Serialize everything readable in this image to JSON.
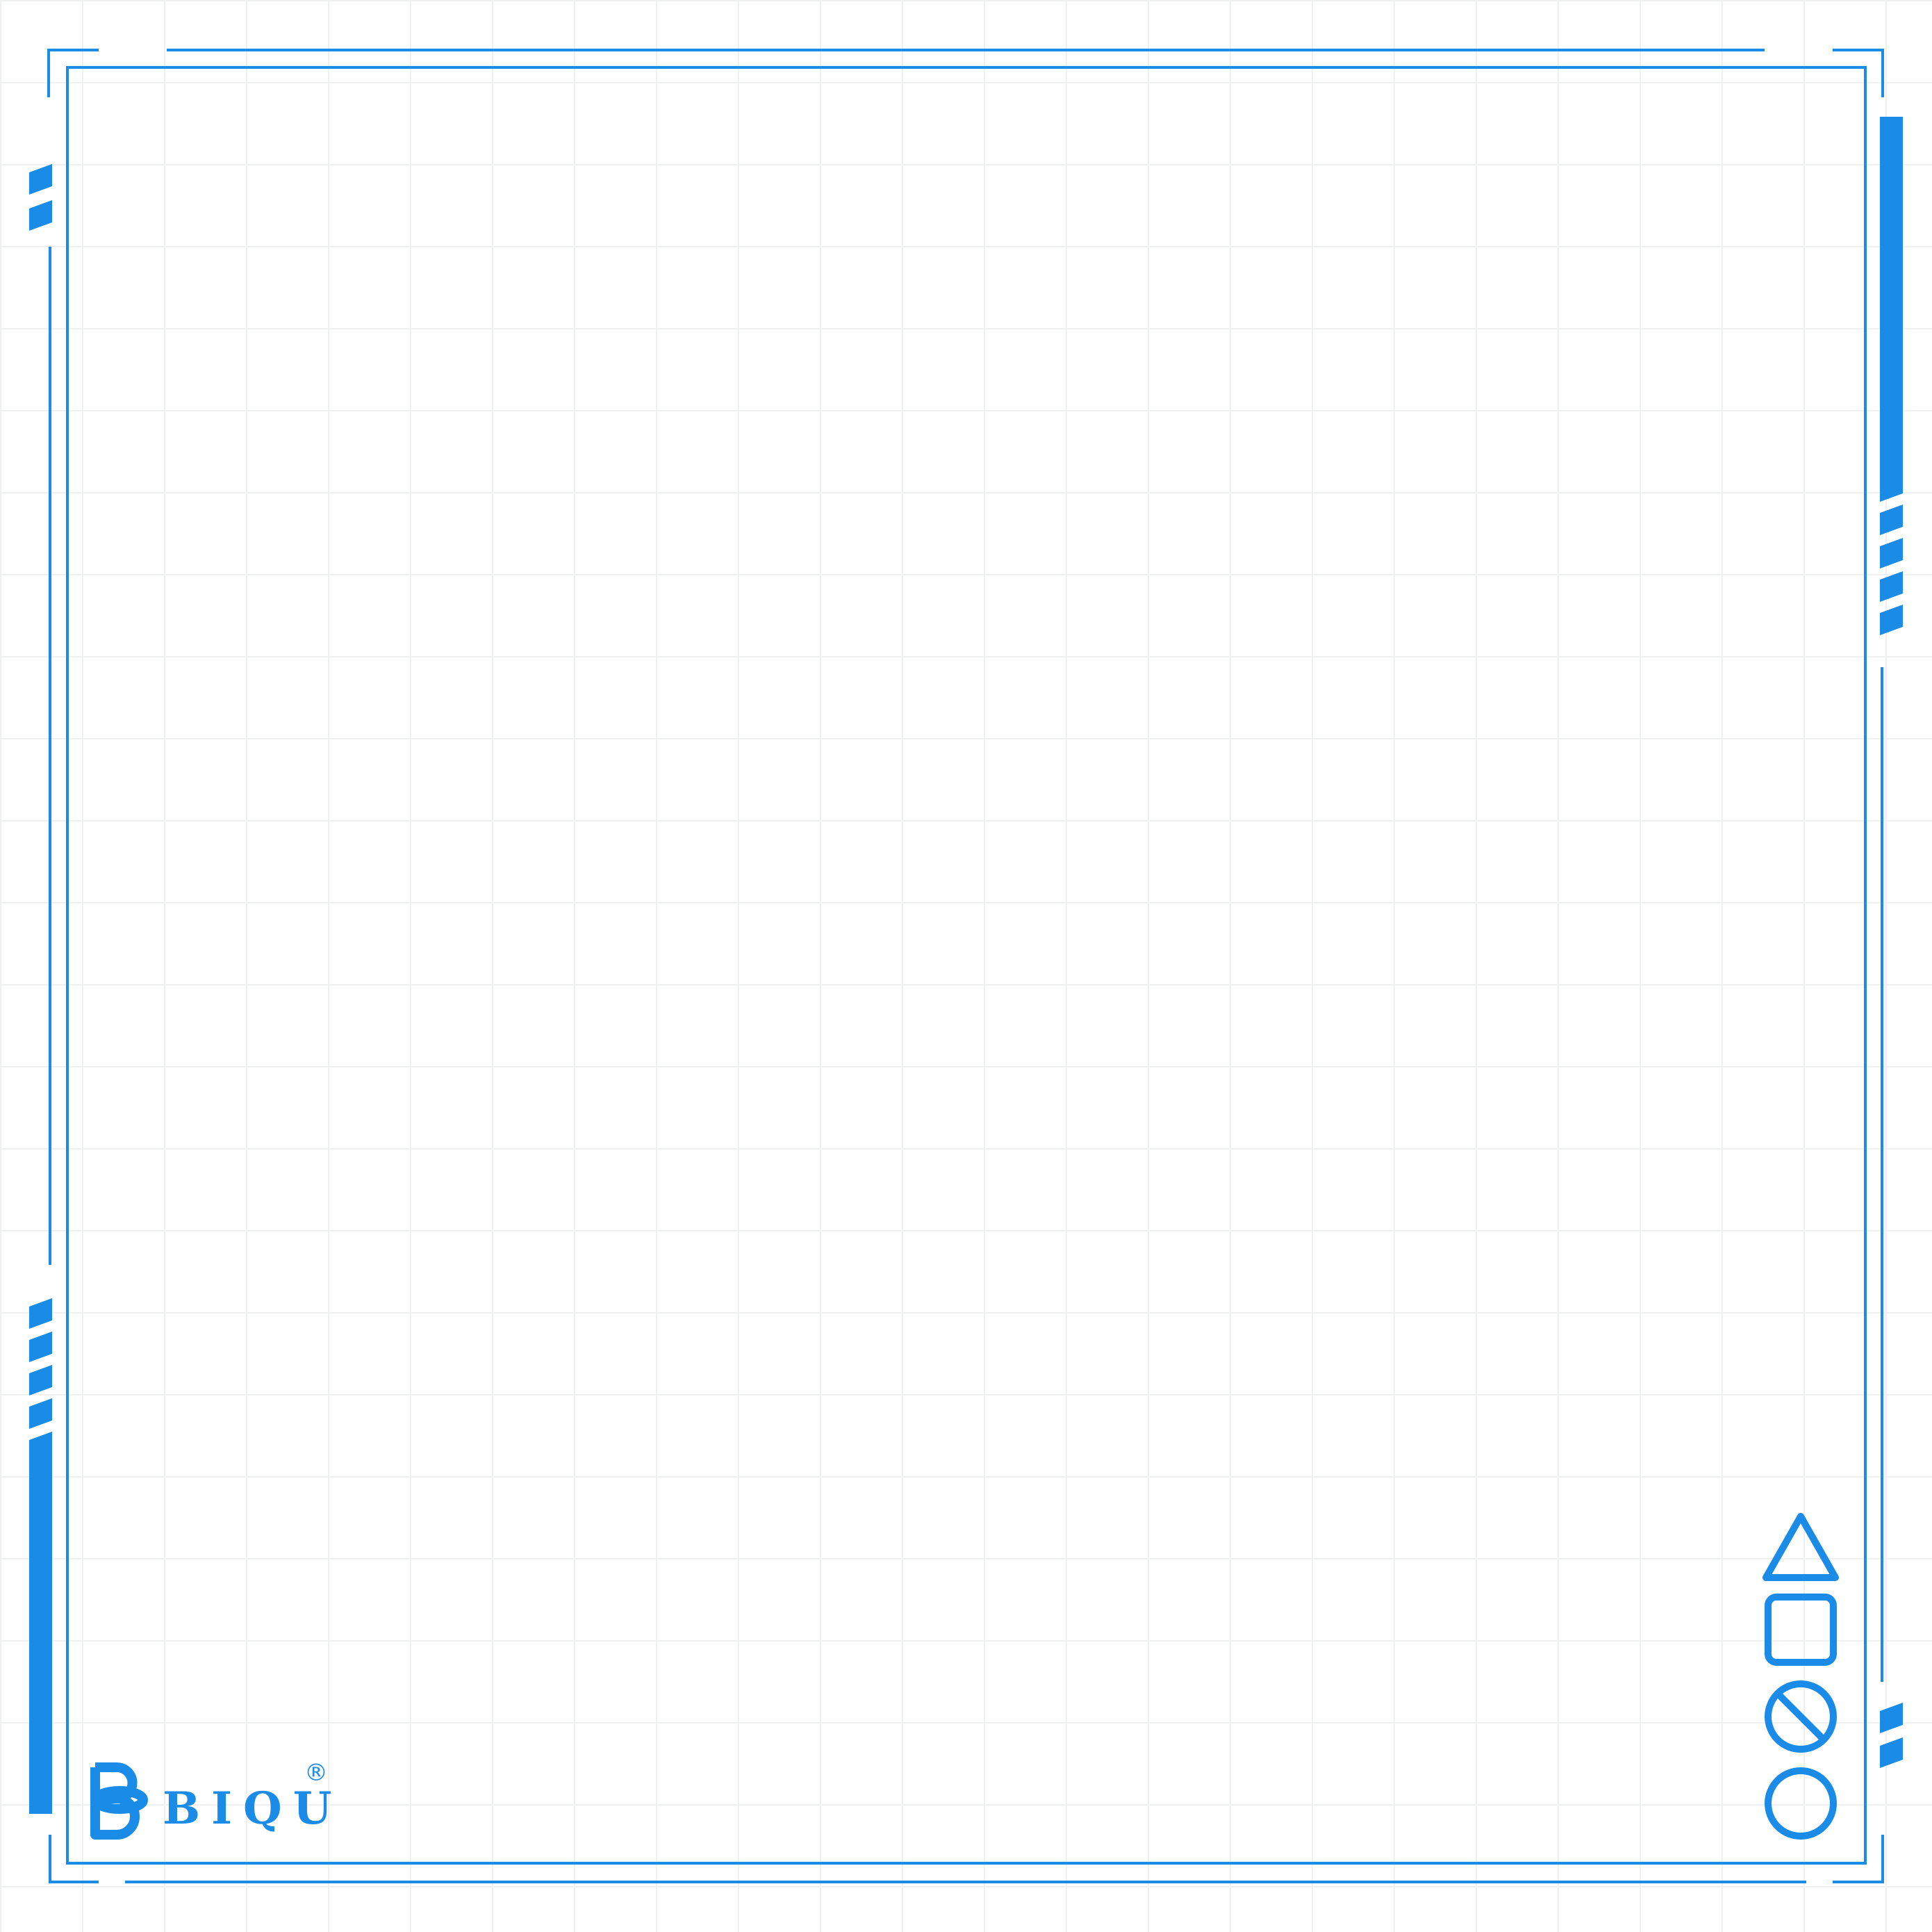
{
  "brand": {
    "name": "BIQU",
    "registered_mark": "®",
    "logo_icon": "biqu-b-monogram-icon"
  },
  "colors": {
    "accent": "#1a8ce8",
    "grid": "#eef0f2",
    "background": "#ffffff"
  },
  "symbols": [
    {
      "name": "triangle-icon"
    },
    {
      "name": "square-icon"
    },
    {
      "name": "slashed-circle-icon"
    },
    {
      "name": "circle-icon"
    }
  ]
}
